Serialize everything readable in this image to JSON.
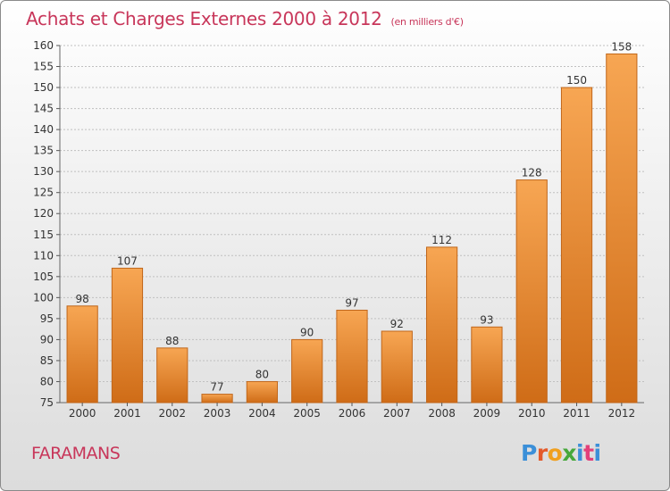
{
  "title": "Achats et Charges Externes 2000 à 2012",
  "unit_note": "(en milliers d'€)",
  "location": "FARAMANS",
  "logo": {
    "text": "Proxiti",
    "letter_colors": [
      "#3b8fd8",
      "#e45a2a",
      "#f0a020",
      "#46a83b",
      "#3b8fd8",
      "#e2407a",
      "#3b8fd8"
    ]
  },
  "colors": {
    "title": "#c8365a",
    "bar_light": "#f7a653",
    "bar_dark": "#cf6c17",
    "grid": "#c0c0c0"
  },
  "chart_data": {
    "type": "bar",
    "categories": [
      "2000",
      "2001",
      "2002",
      "2003",
      "2004",
      "2005",
      "2006",
      "2007",
      "2008",
      "2009",
      "2010",
      "2011",
      "2012"
    ],
    "values": [
      98,
      107,
      88,
      77,
      80,
      90,
      97,
      92,
      112,
      93,
      128,
      150,
      158
    ],
    "ylim": [
      75,
      160
    ],
    "yticks": [
      75,
      80,
      85,
      90,
      95,
      100,
      105,
      110,
      115,
      120,
      125,
      130,
      135,
      140,
      145,
      150,
      155,
      160
    ],
    "grid": true,
    "data_labels": true
  }
}
